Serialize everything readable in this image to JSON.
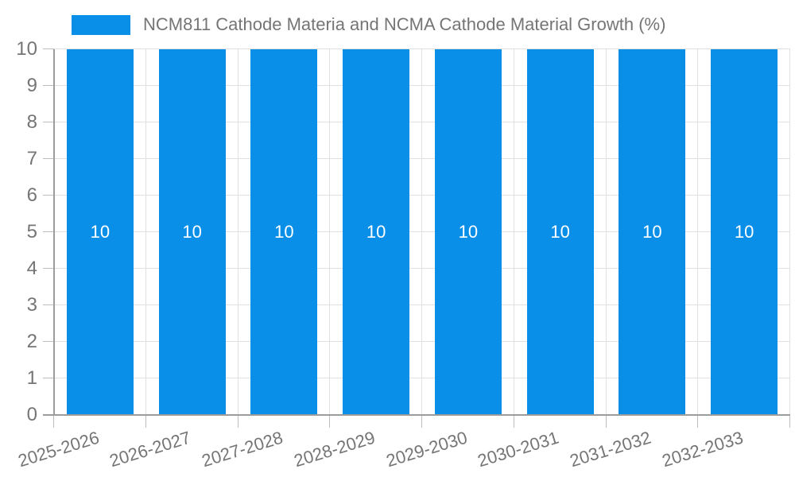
{
  "legend": {
    "label": "NCM811 Cathode Materia and NCMA Cathode Material Growth (%)"
  },
  "chart_data": {
    "type": "bar",
    "title": "NCM811 Cathode Materia and NCMA Cathode Material Growth (%)",
    "categories": [
      "2025-2026",
      "2026-2027",
      "2027-2028",
      "2028-2029",
      "2029-2030",
      "2030-2031",
      "2031-2032",
      "2032-2033"
    ],
    "values": [
      10,
      10,
      10,
      10,
      10,
      10,
      10,
      10
    ],
    "bar_value_labels": [
      "10",
      "10",
      "10",
      "10",
      "10",
      "10",
      "10",
      "10"
    ],
    "xlabel": "",
    "ylabel": "",
    "ylim": [
      0,
      10
    ],
    "yticks": [
      0,
      1,
      2,
      3,
      4,
      5,
      6,
      7,
      8,
      9,
      10
    ],
    "grid": true,
    "legend_position": "top",
    "colors": {
      "bar": "#0a8fe9",
      "grid": "#e0e0e0",
      "tick": "#bdbdbd",
      "axis_line": "#9c9c9c",
      "axis_text": "#757575",
      "value_label": "#ffffff"
    }
  }
}
